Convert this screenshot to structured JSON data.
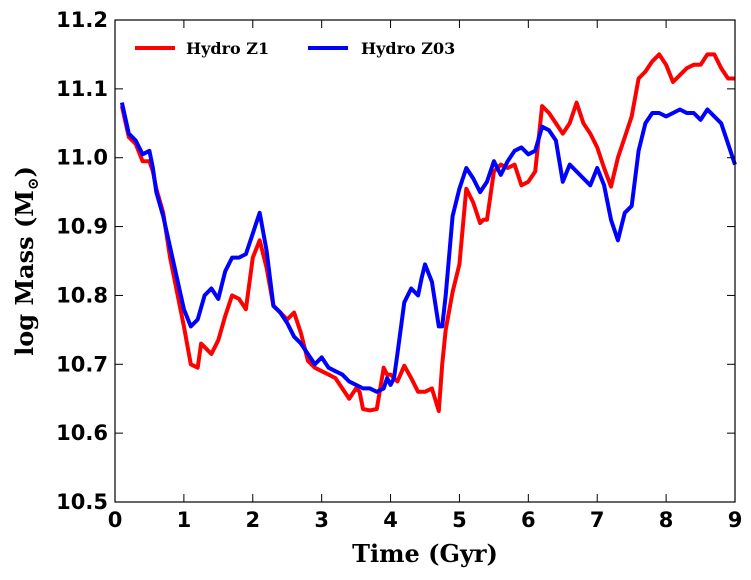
{
  "chart_data": {
    "type": "line",
    "xlabel": "Time (Gyr)",
    "ylabel": "log Mass (M",
    "ylabel_sub": "⊙",
    "ylabel_close": ")",
    "xlim": [
      0,
      9
    ],
    "ylim": [
      10.5,
      11.2
    ],
    "xticks": [
      0,
      1,
      2,
      3,
      4,
      5,
      6,
      7,
      8,
      9
    ],
    "xtick_labels": [
      "0",
      "1",
      "2",
      "3",
      "4",
      "5",
      "6",
      "7",
      "8",
      "9"
    ],
    "yticks": [
      10.5,
      10.6,
      10.7,
      10.8,
      10.9,
      11.0,
      11.1,
      11.2
    ],
    "ytick_labels": [
      "10.5",
      "10.6",
      "10.7",
      "10.8",
      "10.9",
      "11.0",
      "11.1",
      "11.2"
    ],
    "grid": false,
    "legend_position": "top-left",
    "series": [
      {
        "name": "Hydro Z1",
        "color": "#ff0000",
        "x": [
          0.1,
          0.2,
          0.3,
          0.4,
          0.5,
          0.55,
          0.6,
          0.7,
          0.8,
          0.9,
          1.0,
          1.1,
          1.2,
          1.25,
          1.3,
          1.4,
          1.5,
          1.6,
          1.7,
          1.8,
          1.9,
          2.0,
          2.1,
          2.2,
          2.3,
          2.4,
          2.5,
          2.6,
          2.7,
          2.8,
          2.9,
          3.0,
          3.1,
          3.2,
          3.3,
          3.4,
          3.5,
          3.55,
          3.6,
          3.7,
          3.8,
          3.9,
          3.95,
          4.0,
          4.1,
          4.2,
          4.3,
          4.4,
          4.5,
          4.6,
          4.7,
          4.75,
          4.8,
          4.9,
          5.0,
          5.1,
          5.15,
          5.2,
          5.3,
          5.35,
          5.4,
          5.5,
          5.6,
          5.7,
          5.8,
          5.9,
          6.0,
          6.1,
          6.2,
          6.3,
          6.4,
          6.5,
          6.6,
          6.7,
          6.8,
          6.9,
          7.0,
          7.1,
          7.2,
          7.3,
          7.4,
          7.5,
          7.6,
          7.7,
          7.8,
          7.9,
          8.0,
          8.1,
          8.2,
          8.3,
          8.4,
          8.5,
          8.6,
          8.7,
          8.8,
          8.9,
          9.0
        ],
        "values": [
          11.075,
          11.03,
          11.02,
          10.995,
          10.995,
          10.98,
          10.955,
          10.92,
          10.855,
          10.805,
          10.755,
          10.7,
          10.695,
          10.73,
          10.725,
          10.715,
          10.735,
          10.77,
          10.8,
          10.795,
          10.78,
          10.855,
          10.88,
          10.84,
          10.785,
          10.775,
          10.765,
          10.775,
          10.745,
          10.705,
          10.695,
          10.69,
          10.685,
          10.68,
          10.665,
          10.65,
          10.665,
          10.66,
          10.635,
          10.633,
          10.635,
          10.695,
          10.685,
          10.685,
          10.675,
          10.698,
          10.68,
          10.66,
          10.66,
          10.665,
          10.632,
          10.7,
          10.75,
          10.805,
          10.845,
          10.955,
          10.945,
          10.935,
          10.905,
          10.91,
          10.91,
          10.98,
          10.99,
          10.985,
          10.99,
          10.96,
          10.965,
          10.98,
          11.075,
          11.065,
          11.05,
          11.035,
          11.05,
          11.08,
          11.05,
          11.035,
          11.015,
          10.985,
          10.958,
          11.0,
          11.03,
          11.06,
          11.115,
          11.125,
          11.14,
          11.15,
          11.135,
          11.11,
          11.12,
          11.13,
          11.135,
          11.135,
          11.15,
          11.15,
          11.13,
          11.115,
          11.115
        ]
      },
      {
        "name": "Hydro Z03",
        "color": "#0000ff",
        "x": [
          0.1,
          0.2,
          0.3,
          0.4,
          0.5,
          0.55,
          0.6,
          0.7,
          0.8,
          0.9,
          1.0,
          1.1,
          1.2,
          1.3,
          1.4,
          1.5,
          1.6,
          1.7,
          1.8,
          1.9,
          2.0,
          2.05,
          2.1,
          2.2,
          2.3,
          2.4,
          2.5,
          2.6,
          2.7,
          2.8,
          2.9,
          3.0,
          3.1,
          3.2,
          3.3,
          3.4,
          3.5,
          3.6,
          3.7,
          3.8,
          3.9,
          3.95,
          4.0,
          4.05,
          4.1,
          4.2,
          4.3,
          4.4,
          4.45,
          4.5,
          4.6,
          4.7,
          4.75,
          4.8,
          4.9,
          5.0,
          5.1,
          5.2,
          5.3,
          5.4,
          5.5,
          5.6,
          5.7,
          5.8,
          5.9,
          6.0,
          6.1,
          6.2,
          6.3,
          6.4,
          6.5,
          6.6,
          6.7,
          6.8,
          6.9,
          7.0,
          7.1,
          7.2,
          7.3,
          7.35,
          7.4,
          7.5,
          7.6,
          7.7,
          7.8,
          7.9,
          8.0,
          8.1,
          8.2,
          8.3,
          8.4,
          8.5,
          8.6,
          8.7,
          8.8,
          8.9,
          9.0
        ],
        "values": [
          11.08,
          11.035,
          11.025,
          11.005,
          11.01,
          10.985,
          10.95,
          10.915,
          10.87,
          10.825,
          10.78,
          10.755,
          10.765,
          10.8,
          10.81,
          10.795,
          10.835,
          10.855,
          10.855,
          10.86,
          10.89,
          10.905,
          10.92,
          10.865,
          10.785,
          10.775,
          10.76,
          10.74,
          10.73,
          10.715,
          10.7,
          10.71,
          10.695,
          10.69,
          10.685,
          10.675,
          10.67,
          10.665,
          10.665,
          10.66,
          10.665,
          10.68,
          10.67,
          10.68,
          10.715,
          10.79,
          10.81,
          10.8,
          10.825,
          10.845,
          10.82,
          10.755,
          10.755,
          10.8,
          10.915,
          10.955,
          10.985,
          10.97,
          10.95,
          10.965,
          10.995,
          10.975,
          10.995,
          11.01,
          11.015,
          11.005,
          11.01,
          11.045,
          11.04,
          11.025,
          10.965,
          10.99,
          10.98,
          10.97,
          10.96,
          10.985,
          10.96,
          10.91,
          10.88,
          10.9,
          10.92,
          10.93,
          11.01,
          11.05,
          11.065,
          11.065,
          11.06,
          11.065,
          11.07,
          11.065,
          11.065,
          11.055,
          11.07,
          11.06,
          11.05,
          11.02,
          10.99
        ]
      }
    ]
  }
}
